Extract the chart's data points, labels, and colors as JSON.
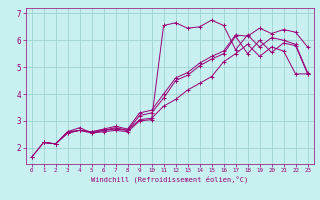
{
  "xlabel": "Windchill (Refroidissement éolien,°C)",
  "ylabel": "",
  "background_color": "#c8f0f0",
  "line_color": "#990077",
  "xlim": [
    -0.5,
    23.5
  ],
  "ylim": [
    1.4,
    7.2
  ],
  "xticks": [
    0,
    1,
    2,
    3,
    4,
    5,
    6,
    7,
    8,
    9,
    10,
    11,
    12,
    13,
    14,
    15,
    16,
    17,
    18,
    19,
    20,
    21,
    22,
    23
  ],
  "yticks": [
    2,
    3,
    4,
    5,
    6,
    7
  ],
  "grid_color": "#99cccc",
  "lines": [
    {
      "x": [
        0,
        1,
        2,
        3,
        4,
        5,
        6,
        7,
        8,
        9,
        10,
        11,
        12,
        13,
        14,
        15,
        16,
        17,
        18,
        19,
        20,
        21,
        22,
        23
      ],
      "y": [
        1.65,
        2.2,
        2.15,
        2.6,
        2.75,
        2.55,
        2.6,
        2.65,
        2.6,
        3.0,
        3.05,
        6.55,
        6.65,
        6.45,
        6.5,
        6.75,
        6.55,
        5.65,
        6.2,
        5.75,
        6.1,
        6.0,
        5.85,
        4.8
      ]
    },
    {
      "x": [
        1,
        2,
        3,
        4,
        5,
        6,
        7,
        8,
        9,
        10,
        11,
        12,
        13,
        14,
        15,
        16,
        17,
        18,
        19,
        20,
        21,
        22,
        23
      ],
      "y": [
        2.2,
        2.15,
        2.55,
        2.65,
        2.6,
        2.65,
        2.75,
        2.65,
        3.2,
        3.3,
        3.85,
        4.5,
        4.7,
        5.05,
        5.3,
        5.5,
        6.15,
        5.5,
        6.0,
        5.55,
        5.9,
        5.8,
        4.75
      ]
    },
    {
      "x": [
        1,
        2,
        3,
        4,
        5,
        6,
        7,
        8,
        9,
        10,
        11,
        12,
        13,
        14,
        15,
        16,
        17,
        18,
        19,
        20,
        21,
        22,
        23
      ],
      "y": [
        2.2,
        2.15,
        2.55,
        2.65,
        2.6,
        2.7,
        2.8,
        2.7,
        3.3,
        3.4,
        4.0,
        4.6,
        4.8,
        5.15,
        5.4,
        5.6,
        6.2,
        6.15,
        6.45,
        6.25,
        6.4,
        6.3,
        5.75
      ]
    },
    {
      "x": [
        0,
        1,
        2,
        3,
        4,
        5,
        6,
        7,
        8,
        9,
        10,
        11,
        12,
        13,
        14,
        15,
        16,
        17,
        18,
        19,
        20,
        21,
        22,
        23
      ],
      "y": [
        1.65,
        2.2,
        2.15,
        2.6,
        2.65,
        2.55,
        2.65,
        2.7,
        2.65,
        3.05,
        3.1,
        3.55,
        3.8,
        4.15,
        4.4,
        4.65,
        5.2,
        5.5,
        5.85,
        5.4,
        5.75,
        5.6,
        4.75,
        4.75
      ]
    }
  ]
}
